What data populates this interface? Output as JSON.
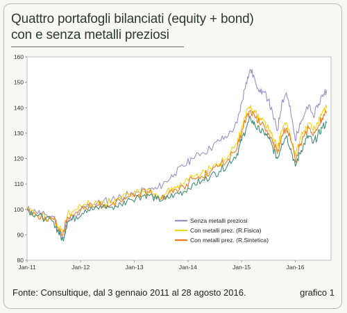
{
  "title_line1": "Quattro portafogli bilanciati (equity + bond)",
  "title_line2": "con e senza metalli preziosi",
  "footer": {
    "source": "Fonte: Consultique, dal 3 gennaio 2011 al 28 agosto 2016.",
    "label": "grafico 1"
  },
  "chart_data": {
    "type": "line",
    "title": "Quattro portafogli bilanciati (equity + bond) con e senza metalli preziosi",
    "xlabel": "",
    "ylabel": "",
    "ylim": [
      80,
      160
    ],
    "yticks": [
      80,
      90,
      100,
      110,
      120,
      130,
      140,
      150,
      160
    ],
    "xticks": [
      "Jan-11",
      "Jan-12",
      "Jan-13",
      "Jan-14",
      "Jan-15",
      "Jan-16"
    ],
    "xlim": [
      "2011-01",
      "2016-09"
    ],
    "grid": false,
    "legend_position": "bottom-right",
    "x": [
      "2011-01",
      "2011-03",
      "2011-05",
      "2011-07",
      "2011-08",
      "2011-09",
      "2011-10",
      "2011-12",
      "2012-02",
      "2012-04",
      "2012-06",
      "2012-08",
      "2012-10",
      "2012-12",
      "2013-02",
      "2013-04",
      "2013-06",
      "2013-08",
      "2013-10",
      "2013-12",
      "2014-02",
      "2014-04",
      "2014-06",
      "2014-08",
      "2014-10",
      "2014-12",
      "2015-01",
      "2015-02",
      "2015-03",
      "2015-04",
      "2015-05",
      "2015-06",
      "2015-07",
      "2015-08",
      "2015-09",
      "2015-10",
      "2015-11",
      "2015-12",
      "2016-01",
      "2016-02",
      "2016-03",
      "2016-04",
      "2016-05",
      "2016-06",
      "2016-07",
      "2016-08"
    ],
    "series": [
      {
        "name": "Senza metalli preziosi",
        "color": "#9b8fc2",
        "values": [
          100,
          99,
          98,
          97,
          93,
          89,
          95,
          97,
          101,
          102,
          103,
          104,
          105,
          106,
          107,
          108,
          108,
          111,
          114,
          117,
          120,
          122,
          124,
          127,
          129,
          134,
          142,
          150,
          155,
          151,
          147,
          146,
          143,
          137,
          131,
          142,
          146,
          138,
          127,
          134,
          137,
          141,
          137,
          140,
          145,
          147
        ]
      },
      {
        "name": "Con metalli prez. (R.Fisica)",
        "color": "#f2d21c",
        "values": [
          100,
          98,
          97,
          96,
          93,
          91,
          98,
          100,
          102,
          102,
          103,
          103,
          104,
          106,
          107,
          108,
          106,
          106,
          109,
          110,
          113,
          114,
          116,
          118,
          121,
          126,
          132,
          138,
          141,
          138,
          136,
          135,
          132,
          128,
          124,
          131,
          134,
          129,
          121,
          127,
          131,
          134,
          131,
          134,
          138,
          140
        ]
      },
      {
        "name": "Con metalli prez. (R.Sintetica)",
        "color": "#ee7a1a",
        "values": [
          100,
          98,
          97,
          96,
          92,
          90,
          97,
          99,
          101,
          101,
          102,
          102,
          103,
          105,
          106,
          107,
          105,
          105,
          108,
          109,
          112,
          113,
          115,
          117,
          120,
          124,
          130,
          136,
          139,
          136,
          134,
          133,
          130,
          126,
          122,
          129,
          132,
          127,
          119,
          125,
          129,
          132,
          129,
          132,
          136,
          138
        ]
      },
      {
        "name": "",
        "color": "#3f8c78",
        "values": [
          100,
          98,
          96,
          95,
          91,
          88,
          95,
          97,
          100,
          100,
          101,
          101,
          102,
          104,
          105,
          106,
          104,
          104,
          106,
          107,
          110,
          111,
          113,
          115,
          118,
          122,
          127,
          132,
          136,
          133,
          131,
          130,
          128,
          124,
          120,
          126,
          129,
          124,
          117,
          122,
          126,
          129,
          126,
          129,
          132,
          134
        ]
      }
    ]
  }
}
